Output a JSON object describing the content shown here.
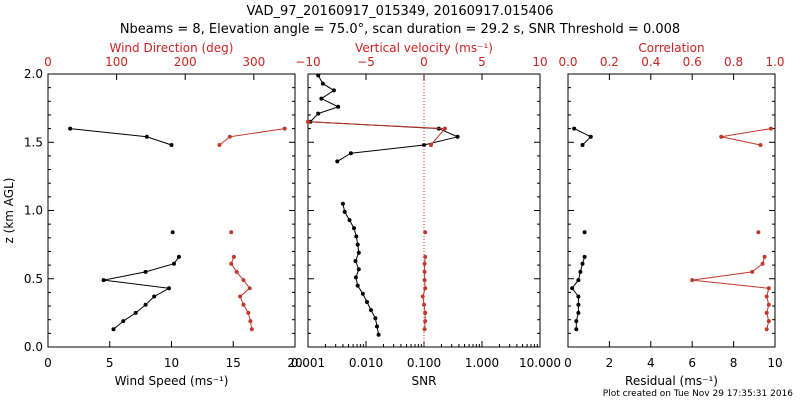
{
  "title_line1": "VAD_97_20160917_015349, 20160917.015406",
  "title_line2": "Nbeams = 8, Elevation angle = 75.0°, scan duration = 29.2 s, SNR Threshold = 0.008",
  "footer": "Plot created on Tue Nov 29 17:35:31 2016",
  "colors": {
    "black": "#000000",
    "red": "#cc2222",
    "red_line": "#c0392b"
  },
  "chart_data": [
    {
      "type": "line",
      "panel": "wind",
      "ylabel": "z (km AGL)",
      "ylim": [
        0,
        2
      ],
      "yticks": [
        "0.0",
        "0.5",
        "1.0",
        "1.5",
        "2.0"
      ],
      "bottom_axis": {
        "label": "Wind Speed (ms⁻¹)",
        "range": [
          0,
          20
        ],
        "ticks": [
          "0",
          "5",
          "10",
          "15",
          "20"
        ]
      },
      "top_axis": {
        "label": "Wind Direction (deg)",
        "range": [
          0,
          360
        ],
        "ticks": [
          "0",
          "100",
          "200",
          "300"
        ]
      },
      "series": [
        {
          "name": "Wind Speed",
          "axis": "bottom",
          "color": "#000000",
          "segments": [
            [
              [
                1.8,
                1.6
              ],
              [
                8.0,
                1.54
              ],
              [
                10.0,
                1.48
              ]
            ],
            [
              [
                10.1,
                0.84
              ]
            ],
            [
              [
                10.6,
                0.66
              ],
              [
                10.2,
                0.61
              ],
              [
                7.9,
                0.55
              ],
              [
                4.5,
                0.49
              ],
              [
                9.8,
                0.43
              ],
              [
                8.6,
                0.37
              ],
              [
                7.9,
                0.31
              ],
              [
                7.1,
                0.25
              ],
              [
                6.1,
                0.19
              ],
              [
                5.3,
                0.13
              ]
            ]
          ]
        },
        {
          "name": "Wind Direction",
          "axis": "top",
          "color": "#c0392b",
          "segments": [
            [
              [
                345,
                1.6
              ],
              [
                265,
                1.54
              ],
              [
                250,
                1.48
              ]
            ],
            [
              [
                267,
                0.84
              ]
            ],
            [
              [
                271,
                0.66
              ],
              [
                267,
                0.61
              ],
              [
                275,
                0.55
              ],
              [
                285,
                0.49
              ],
              [
                294,
                0.43
              ],
              [
                280,
                0.37
              ],
              [
                285,
                0.31
              ],
              [
                292,
                0.25
              ],
              [
                295,
                0.19
              ],
              [
                297,
                0.13
              ]
            ]
          ]
        }
      ]
    },
    {
      "type": "line",
      "panel": "snr",
      "ylim": [
        0,
        2
      ],
      "bottom_axis": {
        "label": "SNR",
        "scale": "log",
        "range": [
          0.001,
          10
        ],
        "ticks": [
          "0.001",
          "0.010",
          "0.100",
          "1.000",
          "10.000"
        ]
      },
      "top_axis": {
        "label": "Vertical velocity (ms⁻¹)",
        "range": [
          -10,
          10
        ],
        "ticks": [
          "−10",
          "−5",
          "0",
          "5",
          "10"
        ]
      },
      "series": [
        {
          "name": "SNR",
          "axis": "bottom",
          "color": "#000000",
          "segments": [
            [
              [
                0.0015,
                1.99
              ],
              [
                0.0018,
                1.93
              ],
              [
                0.0028,
                1.88
              ],
              [
                0.0017,
                1.82
              ],
              [
                0.0033,
                1.76
              ],
              [
                0.0015,
                1.71
              ],
              [
                0.0011,
                1.65
              ],
              [
                0.18,
                1.6
              ],
              [
                0.38,
                1.54
              ],
              [
                0.1,
                1.48
              ],
              [
                0.0055,
                1.42
              ],
              [
                0.0032,
                1.36
              ]
            ],
            [
              [
                0.004,
                1.05
              ],
              [
                0.0043,
                0.99
              ],
              [
                0.0052,
                0.93
              ],
              [
                0.0062,
                0.87
              ],
              [
                0.0068,
                0.81
              ],
              [
                0.0072,
                0.75
              ],
              [
                0.0075,
                0.69
              ],
              [
                0.0066,
                0.63
              ],
              [
                0.0075,
                0.57
              ],
              [
                0.0067,
                0.51
              ],
              [
                0.0072,
                0.45
              ],
              [
                0.0088,
                0.39
              ],
              [
                0.0104,
                0.33
              ],
              [
                0.0122,
                0.27
              ],
              [
                0.0145,
                0.21
              ],
              [
                0.0155,
                0.15
              ],
              [
                0.0165,
                0.09
              ]
            ]
          ]
        },
        {
          "name": "Vertical velocity",
          "axis": "top",
          "color": "#c0392b",
          "zero_line": 0,
          "segments": [
            [
              [
                -10,
                1.65
              ],
              [
                1.8,
                1.6
              ],
              [
                0.6,
                1.48
              ]
            ],
            [
              [
                0.1,
                0.84
              ]
            ],
            [
              [
                0.1,
                0.66
              ],
              [
                0.05,
                0.61
              ],
              [
                0.05,
                0.55
              ],
              [
                0.05,
                0.49
              ],
              [
                0.1,
                0.43
              ],
              [
                -0.1,
                0.37
              ],
              [
                0.0,
                0.31
              ],
              [
                0.1,
                0.25
              ],
              [
                0.1,
                0.19
              ],
              [
                0.05,
                0.13
              ]
            ]
          ]
        }
      ]
    },
    {
      "type": "line",
      "panel": "residual",
      "ylim": [
        0,
        2
      ],
      "bottom_axis": {
        "label": "Residual (ms⁻¹)",
        "range": [
          0,
          10
        ],
        "ticks": [
          "0",
          "2",
          "4",
          "6",
          "8",
          "10"
        ]
      },
      "top_axis": {
        "label": "Correlation",
        "range": [
          0,
          1
        ],
        "ticks": [
          "0.0",
          "0.2",
          "0.4",
          "0.6",
          "0.8",
          "1.0"
        ]
      },
      "series": [
        {
          "name": "Residual",
          "axis": "bottom",
          "color": "#000000",
          "segments": [
            [
              [
                0.3,
                1.6
              ],
              [
                1.1,
                1.54
              ],
              [
                0.7,
                1.48
              ]
            ],
            [
              [
                0.8,
                0.84
              ]
            ],
            [
              [
                0.8,
                0.66
              ],
              [
                0.7,
                0.61
              ],
              [
                0.6,
                0.55
              ],
              [
                0.5,
                0.49
              ],
              [
                0.2,
                0.43
              ],
              [
                0.5,
                0.37
              ],
              [
                0.5,
                0.31
              ],
              [
                0.5,
                0.25
              ],
              [
                0.4,
                0.19
              ],
              [
                0.4,
                0.13
              ]
            ]
          ]
        },
        {
          "name": "Correlation",
          "axis": "top",
          "color": "#c0392b",
          "segments": [
            [
              [
                0.98,
                1.6
              ],
              [
                0.74,
                1.54
              ],
              [
                0.93,
                1.48
              ]
            ],
            [
              [
                0.92,
                0.84
              ]
            ],
            [
              [
                0.95,
                0.66
              ],
              [
                0.94,
                0.61
              ],
              [
                0.89,
                0.55
              ],
              [
                0.6,
                0.49
              ],
              [
                0.97,
                0.43
              ],
              [
                0.96,
                0.37
              ],
              [
                0.97,
                0.31
              ],
              [
                0.96,
                0.25
              ],
              [
                0.97,
                0.19
              ],
              [
                0.96,
                0.13
              ]
            ]
          ]
        }
      ]
    }
  ]
}
